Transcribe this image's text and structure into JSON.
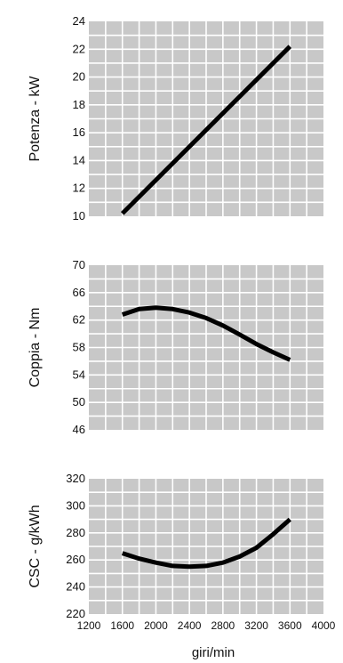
{
  "chart_data": [
    {
      "type": "line",
      "title": "",
      "ylabel": "Potenza - kW",
      "xlabel": "",
      "xlim": [
        1200,
        4000
      ],
      "ylim": [
        10,
        24
      ],
      "grid": true,
      "yticks": [
        "10",
        "12",
        "14",
        "16",
        "18",
        "20",
        "22",
        "24"
      ],
      "series": [
        {
          "x": [
            1600,
            3600
          ],
          "y": [
            10.2,
            22.2
          ]
        }
      ]
    },
    {
      "type": "line",
      "title": "",
      "ylabel": "Coppia - Nm",
      "xlabel": "",
      "xlim": [
        1200,
        4000
      ],
      "ylim": [
        46,
        70
      ],
      "grid": true,
      "yticks": [
        "46",
        "50",
        "54",
        "58",
        "62",
        "66",
        "70"
      ],
      "series": [
        {
          "x": [
            1600,
            1800,
            2000,
            2200,
            2400,
            2600,
            2800,
            3000,
            3200,
            3400,
            3600
          ],
          "y": [
            62.8,
            63.6,
            63.8,
            63.6,
            63.1,
            62.3,
            61.2,
            59.9,
            58.5,
            57.3,
            56.2
          ]
        }
      ]
    },
    {
      "type": "line",
      "title": "",
      "ylabel": "CSC - g/kWh",
      "xlabel": "giri/min",
      "xlim": [
        1200,
        4000
      ],
      "ylim": [
        220,
        320
      ],
      "grid": true,
      "yticks": [
        "220",
        "240",
        "260",
        "280",
        "300",
        "320"
      ],
      "xticks": [
        "1200",
        "1600",
        "2000",
        "2400",
        "2800",
        "3200",
        "3600",
        "4000"
      ],
      "series": [
        {
          "x": [
            1600,
            1800,
            2000,
            2200,
            2400,
            2600,
            2800,
            3000,
            3200,
            3400,
            3600
          ],
          "y": [
            265,
            261,
            258,
            255.6,
            255,
            255.6,
            258,
            262.5,
            269,
            279,
            290
          ]
        }
      ]
    }
  ]
}
